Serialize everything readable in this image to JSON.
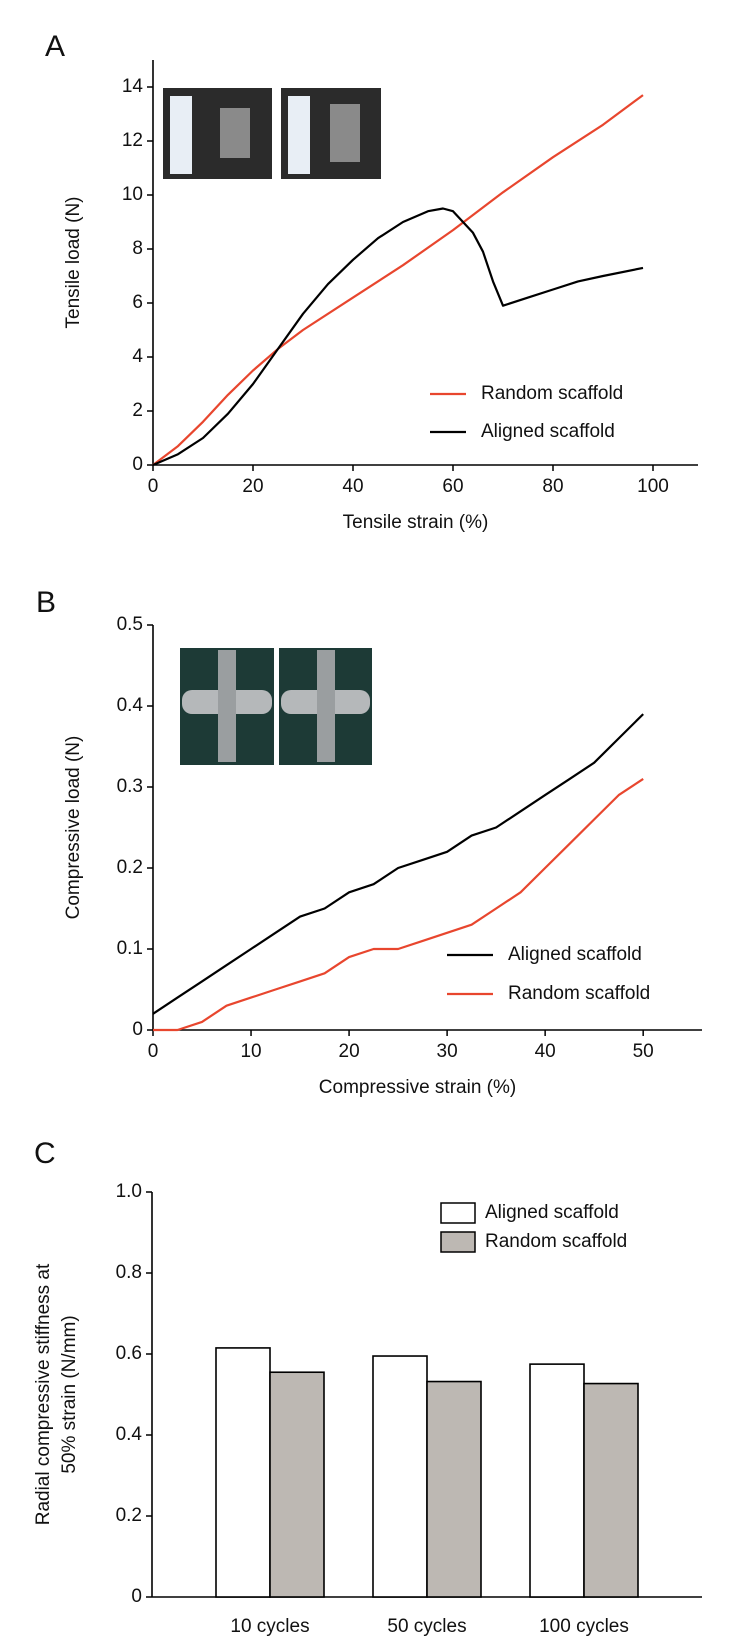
{
  "chart_data": [
    {
      "type": "line",
      "label": "A",
      "xlabel": "Tensile strain (%)",
      "ylabel": "Tensile load (N)",
      "xlim": [
        0,
        109
      ],
      "ylim": [
        0,
        15
      ],
      "xticks": [
        0,
        20,
        40,
        60,
        80,
        100
      ],
      "yticks": [
        0,
        2,
        4,
        6,
        8,
        10,
        12,
        14
      ],
      "series": [
        {
          "name": "Random scaffold",
          "color": "#e8462e",
          "x": [
            0,
            5,
            10,
            15,
            20,
            25,
            30,
            40,
            50,
            60,
            70,
            80,
            90,
            98
          ],
          "values": [
            0,
            0.7,
            1.6,
            2.6,
            3.5,
            4.3,
            5.0,
            6.2,
            7.4,
            8.7,
            10.1,
            11.4,
            12.6,
            13.7
          ]
        },
        {
          "name": "Aligned scaffold",
          "color": "#000000",
          "x": [
            0,
            5,
            10,
            15,
            20,
            25,
            30,
            35,
            40,
            45,
            50,
            55,
            58,
            60,
            62,
            64,
            66,
            68,
            70,
            75,
            80,
            85,
            90,
            98
          ],
          "values": [
            0,
            0.4,
            1.0,
            1.9,
            3.0,
            4.3,
            5.6,
            6.7,
            7.6,
            8.4,
            9.0,
            9.4,
            9.5,
            9.4,
            9.0,
            8.6,
            7.9,
            6.8,
            5.9,
            6.2,
            6.5,
            6.8,
            7.0,
            7.3
          ]
        }
      ]
    },
    {
      "type": "line",
      "label": "B",
      "xlabel": "Compressive strain (%)",
      "ylabel": "Compressive load (N)",
      "xlim": [
        0,
        56
      ],
      "ylim": [
        0,
        0.5
      ],
      "xticks": [
        0,
        10,
        20,
        30,
        40,
        50
      ],
      "yticks": [
        0,
        0.1,
        0.2,
        0.3,
        0.4,
        0.5
      ],
      "x": [
        0,
        2.5,
        5,
        7.5,
        10,
        12.5,
        15,
        17.5,
        20,
        22.5,
        25,
        27.5,
        30,
        32.5,
        35,
        37.5,
        40,
        42.5,
        45,
        47.5,
        50
      ],
      "series": [
        {
          "name": "Aligned scaffold",
          "color": "#000000",
          "values": [
            0.02,
            0.04,
            0.06,
            0.08,
            0.1,
            0.12,
            0.14,
            0.15,
            0.17,
            0.18,
            0.2,
            0.21,
            0.22,
            0.24,
            0.25,
            0.27,
            0.29,
            0.31,
            0.33,
            0.36,
            0.39
          ]
        },
        {
          "name": "Random scaffold",
          "color": "#e8462e",
          "values": [
            0.0,
            0.0,
            0.01,
            0.03,
            0.04,
            0.05,
            0.06,
            0.07,
            0.09,
            0.1,
            0.1,
            0.11,
            0.12,
            0.13,
            0.15,
            0.17,
            0.2,
            0.23,
            0.26,
            0.29,
            0.31
          ]
        }
      ]
    },
    {
      "type": "bar",
      "label": "C",
      "ylabel": [
        "Radial compressive stiffness at",
        "50% strain (N/mm)"
      ],
      "ylim": [
        0,
        1
      ],
      "yticks": [
        0,
        0.2,
        0.4,
        0.6,
        0.8,
        {
          "value": 1,
          "label": "1.0"
        }
      ],
      "categories": [
        "10 cycles",
        "50 cycles",
        "100 cycles"
      ],
      "series": [
        {
          "name": "Aligned scaffold",
          "color": "#ffffff",
          "values": [
            0.615,
            0.595,
            0.575
          ]
        },
        {
          "name": "Random scaffold",
          "color": "#bdb8b3",
          "values": [
            0.555,
            0.532,
            0.527
          ]
        }
      ]
    }
  ]
}
